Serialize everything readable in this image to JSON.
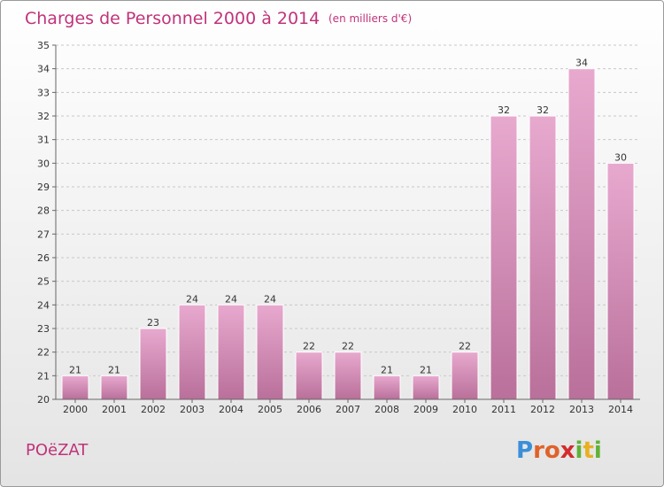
{
  "chart_data": {
    "type": "bar",
    "title": "Charges de Personnel 2000 à 2014",
    "subtitle": "(en milliers d'€)",
    "categories": [
      "2000",
      "2001",
      "2002",
      "2003",
      "2004",
      "2005",
      "2006",
      "2007",
      "2008",
      "2009",
      "2010",
      "2011",
      "2012",
      "2013",
      "2014"
    ],
    "values": [
      21,
      21,
      23,
      24,
      24,
      24,
      22,
      22,
      21,
      21,
      22,
      32,
      32,
      34,
      30
    ],
    "ylim": [
      20,
      35
    ],
    "yticks": [
      20,
      21,
      22,
      23,
      24,
      25,
      26,
      27,
      28,
      29,
      30,
      31,
      32,
      33,
      34,
      35
    ],
    "grid": "horizontal dashed",
    "bar_color": "#d88fb8"
  },
  "footer": {
    "commune": "POëZAT",
    "logo": [
      "P",
      "r",
      "o",
      "x",
      "i",
      "t",
      "i"
    ],
    "logo_colors": [
      "#3a8fd8",
      "#e0622a",
      "#e0622a",
      "#d42c2c",
      "#5fb238",
      "#e8b020",
      "#5fb238"
    ]
  }
}
